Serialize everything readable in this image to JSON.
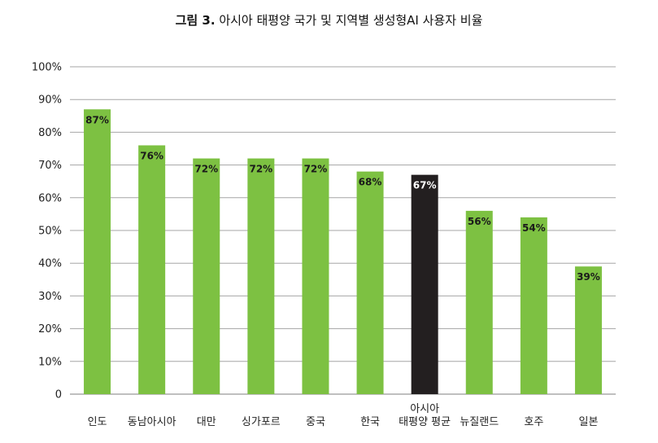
{
  "title_label": "그림 3.",
  "title_text": "아시아 태평양 국가 및 지역별 생성형AI 사용자 비율",
  "chart_data": {
    "type": "bar",
    "title": "그림 3. 아시아 태평양 국가 및 지역별 생성형AI 사용자 비율",
    "xlabel": "",
    "ylabel": "",
    "ylim": [
      0,
      100
    ],
    "y_ticks": [
      "0",
      "10%",
      "20%",
      "30%",
      "40%",
      "50%",
      "60%",
      "70%",
      "80%",
      "90%",
      "100%"
    ],
    "grid": true,
    "categories": [
      "인도",
      "동남아시아",
      "대만",
      "싱가포르",
      "중국",
      "한국",
      "아시아\n태평양 평균",
      "뉴질랜드",
      "호주",
      "일본"
    ],
    "values": [
      87,
      76,
      72,
      72,
      72,
      68,
      67,
      56,
      54,
      39
    ],
    "data_labels": [
      "87%",
      "76%",
      "72%",
      "72%",
      "72%",
      "68%",
      "67%",
      "56%",
      "54%",
      "39%"
    ],
    "colors": {
      "bar": "#7dc142",
      "highlight_bar": "#231f20",
      "highlight_index": 6,
      "label_on_green": "#1a1a1a",
      "label_on_dark": "#ffffff",
      "grid": "#a6a6a6"
    }
  }
}
